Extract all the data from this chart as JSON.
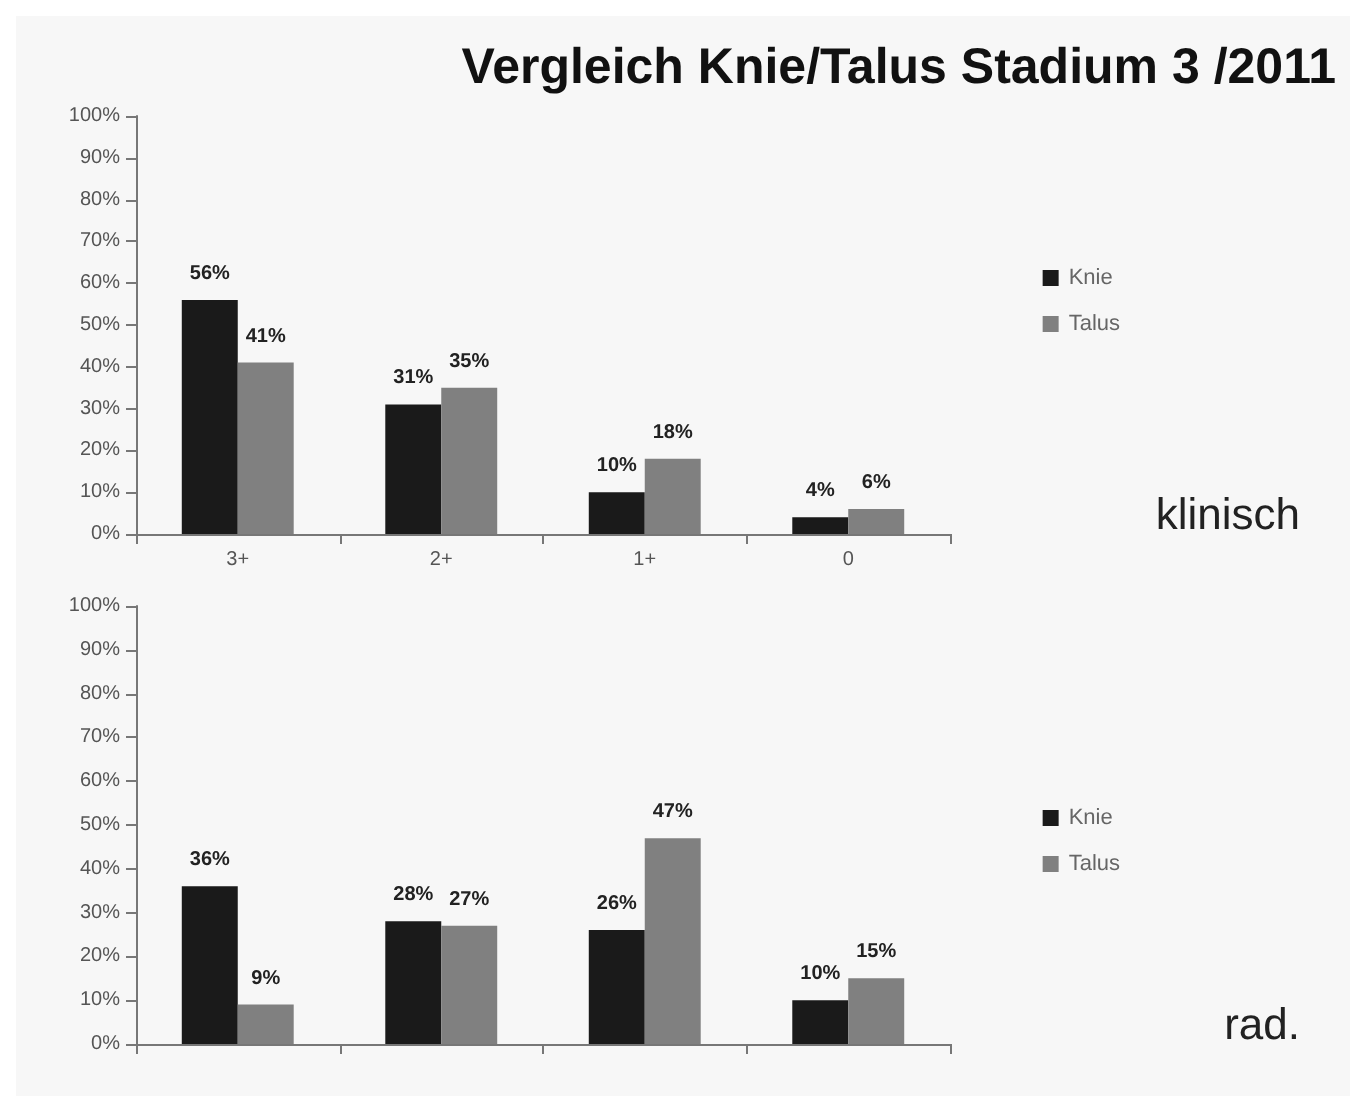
{
  "chart_data": [
    {
      "type": "bar",
      "title": "Vergleich Knie/Talus Stadium 3 /2011",
      "categories": [
        "3+",
        "2+",
        "1+",
        "0"
      ],
      "series": [
        {
          "name": "Knie",
          "color": "#1a1a1a",
          "values": [
            56,
            31,
            10,
            4
          ],
          "value_labels": [
            "56%",
            "31%",
            "10%",
            "4%"
          ]
        },
        {
          "name": "Talus",
          "color": "#808080",
          "values": [
            41,
            35,
            18,
            6
          ],
          "value_labels": [
            "41%",
            "35%",
            "18%",
            "6%"
          ]
        }
      ],
      "ylim": [
        0,
        100
      ],
      "yticks": [
        {
          "value": 0,
          "label": "0%"
        },
        {
          "value": 10,
          "label": "10%"
        },
        {
          "value": 20,
          "label": "20%"
        },
        {
          "value": 30,
          "label": "30%"
        },
        {
          "value": 40,
          "label": "40%"
        },
        {
          "value": 50,
          "label": "50%"
        },
        {
          "value": 60,
          "label": "60%"
        },
        {
          "value": 70,
          "label": "70%"
        },
        {
          "value": 80,
          "label": "80%"
        },
        {
          "value": 90,
          "label": "90%"
        },
        {
          "value": 100,
          "label": "100%"
        }
      ],
      "grid": false,
      "legend": "right",
      "annotations": [
        "klinisch"
      ]
    },
    {
      "type": "bar",
      "categories": [
        null,
        null,
        null,
        null
      ],
      "series": [
        {
          "name": "Knie",
          "color": "#1a1a1a",
          "values": [
            36,
            28,
            26,
            10
          ],
          "value_labels": [
            "36%",
            "28%",
            "26%",
            "10%"
          ]
        },
        {
          "name": "Talus",
          "color": "#808080",
          "values": [
            9,
            27,
            47,
            15
          ],
          "value_labels": [
            "9%",
            "27%",
            "47%",
            "15%"
          ]
        }
      ],
      "ylim": [
        0,
        100
      ],
      "yticks": [
        {
          "value": 0,
          "label": "0%"
        },
        {
          "value": 10,
          "label": "10%"
        },
        {
          "value": 20,
          "label": "20%"
        },
        {
          "value": 30,
          "label": "30%"
        },
        {
          "value": 40,
          "label": "40%"
        },
        {
          "value": 50,
          "label": "50%"
        },
        {
          "value": 60,
          "label": "60%"
        },
        {
          "value": 70,
          "label": "70%"
        },
        {
          "value": 80,
          "label": "80%"
        },
        {
          "value": 90,
          "label": "90%"
        },
        {
          "value": 100,
          "label": "100%"
        }
      ],
      "grid": false,
      "legend": "right",
      "annotations": [
        "rad."
      ]
    }
  ]
}
